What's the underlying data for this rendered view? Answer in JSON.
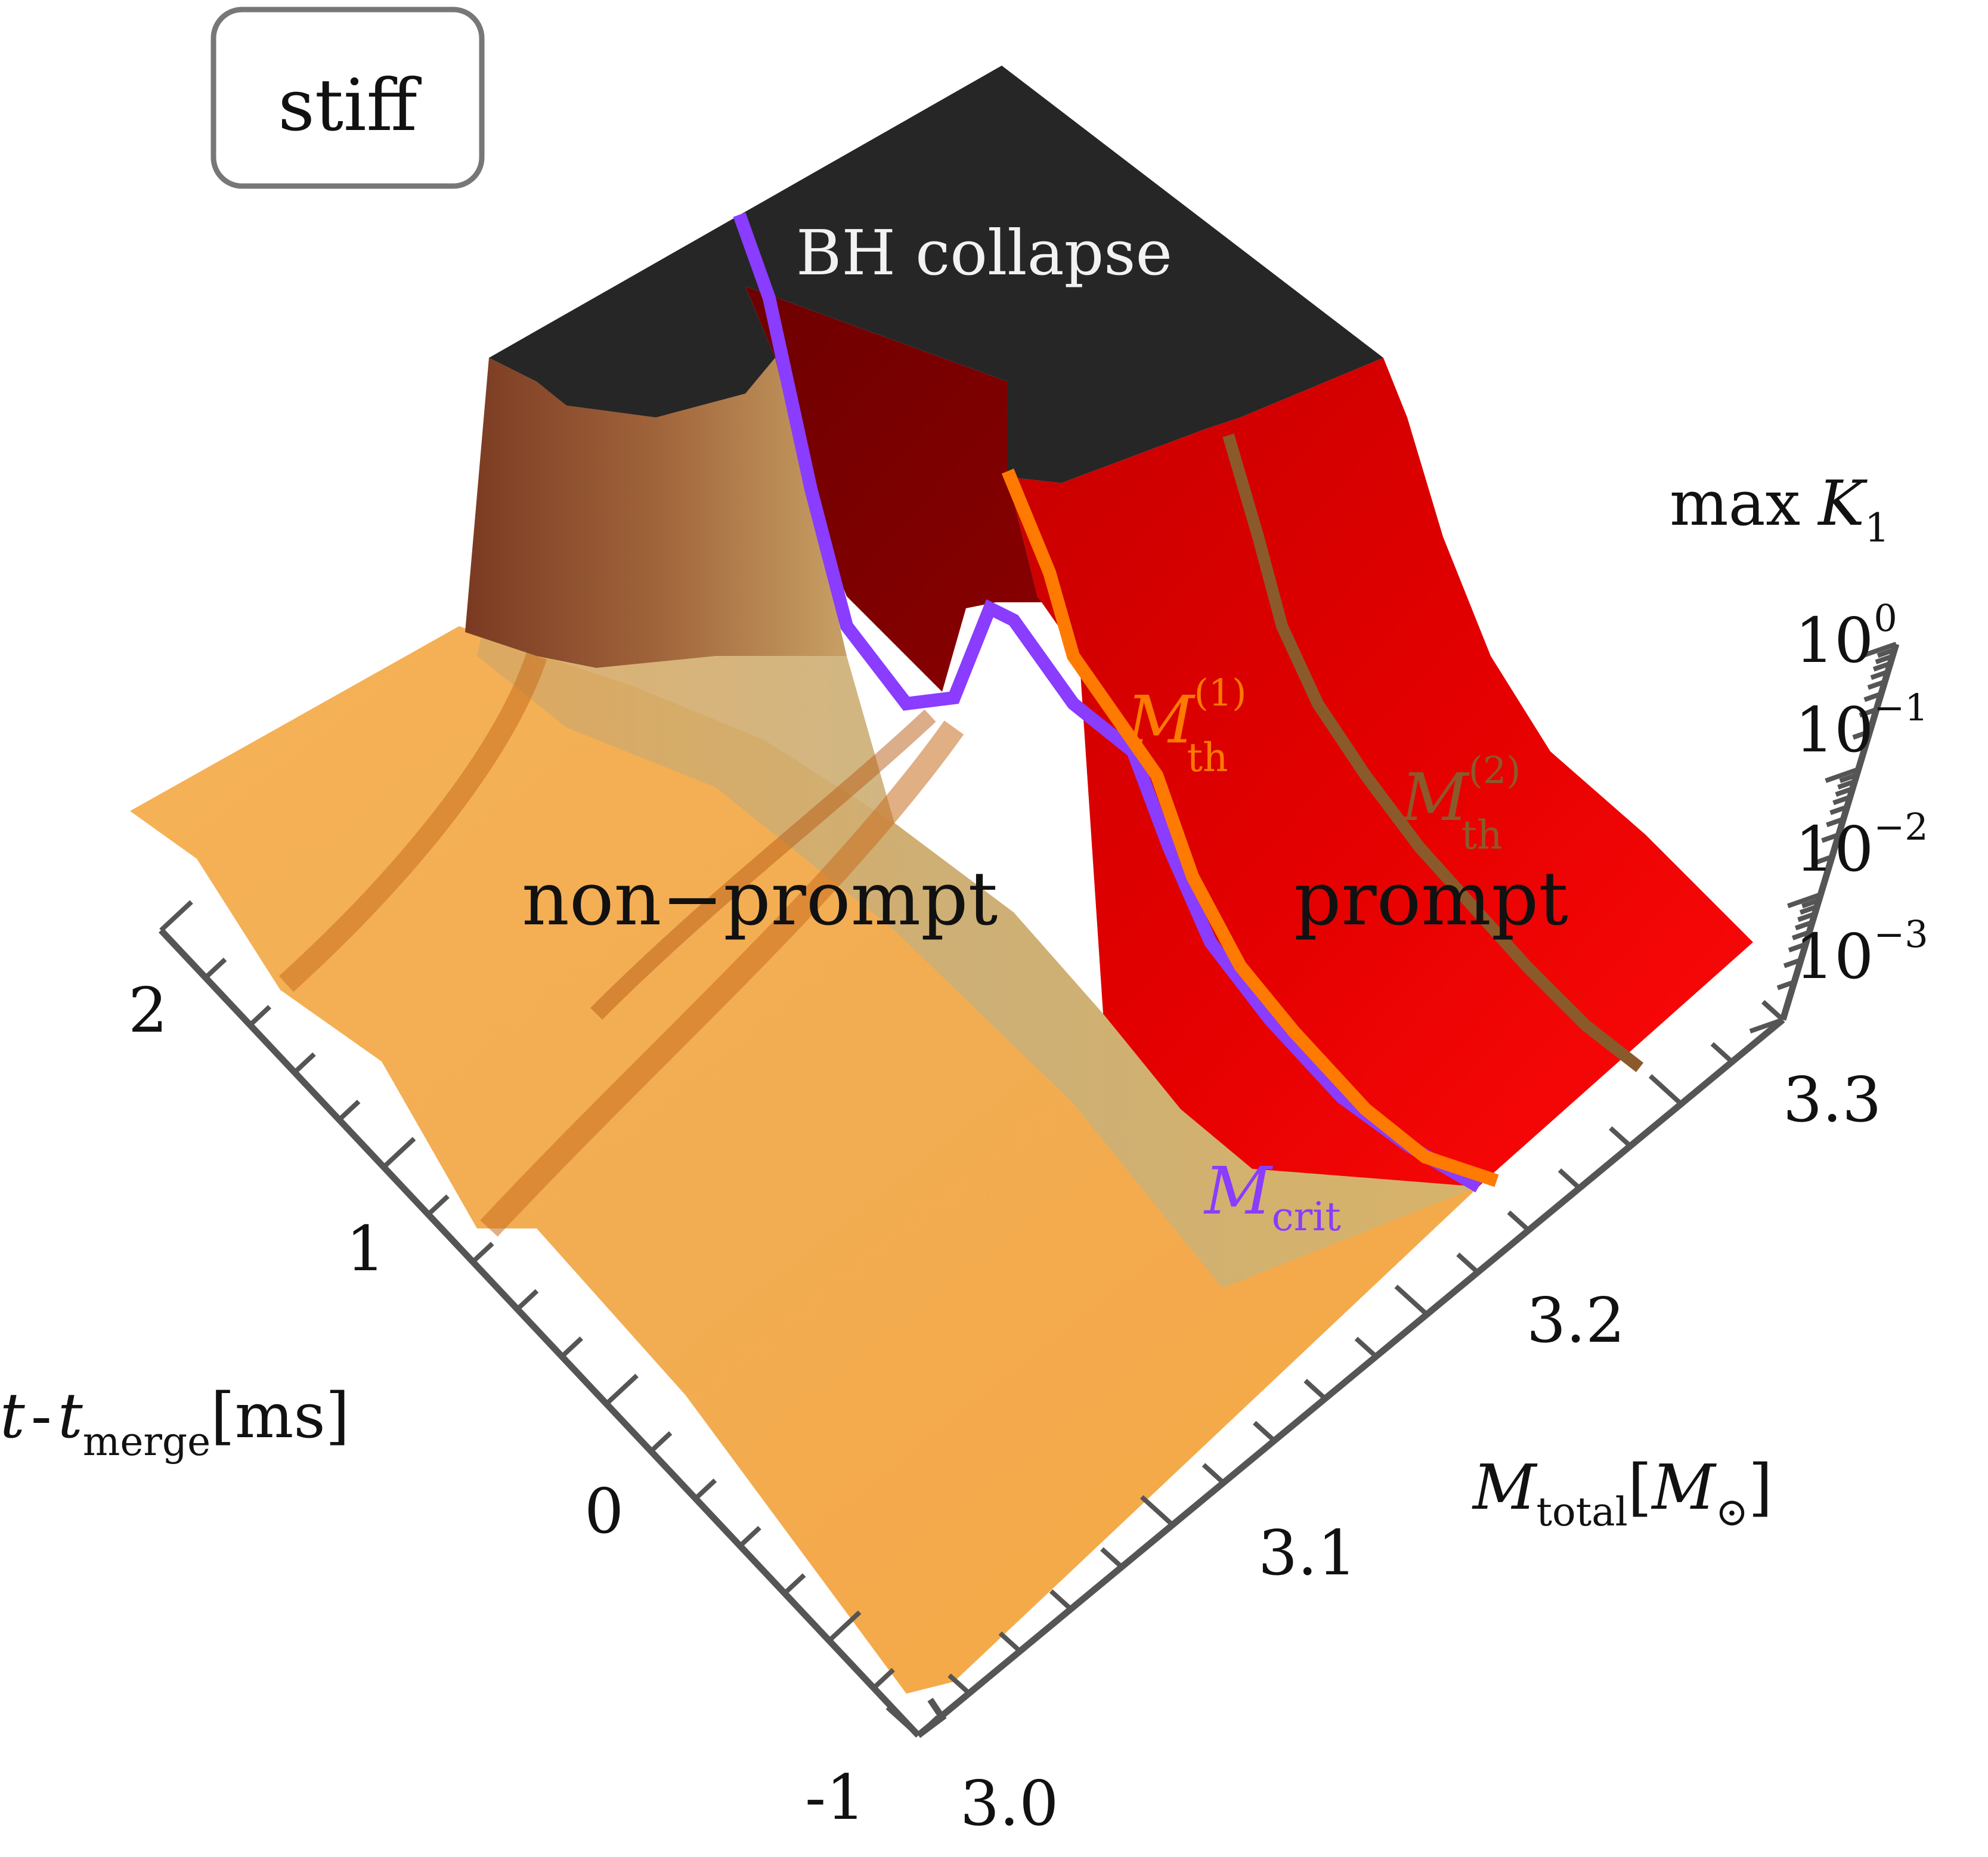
{
  "chart_data": {
    "type": "surface3d",
    "eos_tag": "stiff",
    "x_axis": {
      "label": "t",
      "label_minus": "-",
      "label_sub_var": "t",
      "label_sub": "merge",
      "label_unit": "[ms]",
      "ticks": [
        "-1",
        "0",
        "1",
        "2"
      ],
      "range": [
        -1,
        2.4
      ]
    },
    "y_axis": {
      "label": "M",
      "label_sub": "total",
      "label_unit_open": "[",
      "label_unit_var": "M",
      "label_unit_sub": "⊙",
      "label_unit_close": "]",
      "ticks": [
        "3.0",
        "3.1",
        "3.2",
        "3.3"
      ],
      "range": [
        3.0,
        3.35
      ]
    },
    "z_axis": {
      "label_prefix": "max",
      "label_var": "K",
      "label_sub": "1",
      "scale": "log",
      "tick_base": "10",
      "tick_exponents": [
        "0",
        "−1",
        "−2",
        "−3"
      ]
    },
    "regions": {
      "non_prompt": "non−prompt",
      "prompt": "prompt",
      "bh_collapse": "BH collapse"
    },
    "curves": [
      {
        "key": "M_crit",
        "var": "M",
        "sub": "crit",
        "sup": "",
        "color": "#8a3cff"
      },
      {
        "key": "M_th1",
        "var": "M",
        "sub": "th",
        "sup": "(1)",
        "color": "#ff7a00"
      },
      {
        "key": "M_th2",
        "var": "M",
        "sub": "th",
        "sup": "(2)",
        "color": "#8b5a2b"
      }
    ],
    "colors": {
      "non_prompt_surface": "#f4ad4f",
      "prompt_surface": "#e60a0a",
      "bh_plateau": "#262626",
      "axis": "#555555"
    }
  }
}
